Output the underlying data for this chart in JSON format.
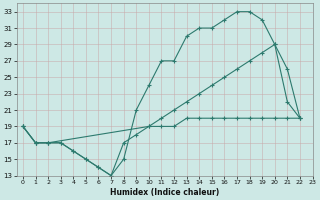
{
  "xlabel": "Humidex (Indice chaleur)",
  "bg_color": "#cde8e5",
  "grid_color": "#b8d8d5",
  "line_color": "#2d7a6e",
  "ylim": [
    13,
    34
  ],
  "xlim": [
    -0.5,
    23
  ],
  "yticks": [
    13,
    15,
    17,
    19,
    21,
    23,
    25,
    27,
    29,
    31,
    33
  ],
  "xticks": [
    0,
    1,
    2,
    3,
    4,
    5,
    6,
    7,
    8,
    9,
    10,
    11,
    12,
    13,
    14,
    15,
    16,
    17,
    18,
    19,
    20,
    21,
    22,
    23
  ],
  "line1_x": [
    0,
    1,
    2,
    3,
    4,
    5,
    6,
    7,
    8,
    9,
    10,
    11,
    12,
    13,
    14,
    15,
    16,
    17,
    18,
    19,
    20,
    21,
    22
  ],
  "line1_y": [
    19,
    17,
    17,
    17,
    16,
    15,
    14,
    13,
    15,
    21,
    24,
    27,
    27,
    30,
    31,
    31,
    32,
    33,
    33,
    32,
    29,
    22,
    20
  ],
  "line2_x": [
    0,
    1,
    2,
    3,
    4,
    5,
    6,
    7,
    8,
    9,
    10,
    11,
    12,
    13,
    14,
    15,
    16,
    17,
    18,
    19,
    20,
    21,
    22
  ],
  "line2_y": [
    19,
    17,
    17,
    17,
    16,
    15,
    14,
    13,
    17,
    18,
    19,
    19,
    19,
    20,
    20,
    20,
    20,
    20,
    20,
    20,
    20,
    20,
    20
  ],
  "line3_x": [
    0,
    1,
    2,
    10,
    11,
    12,
    13,
    14,
    15,
    16,
    17,
    18,
    19,
    20,
    21,
    22
  ],
  "line3_y": [
    19,
    17,
    17,
    19,
    20,
    21,
    22,
    23,
    24,
    25,
    26,
    27,
    28,
    29,
    26,
    20
  ]
}
